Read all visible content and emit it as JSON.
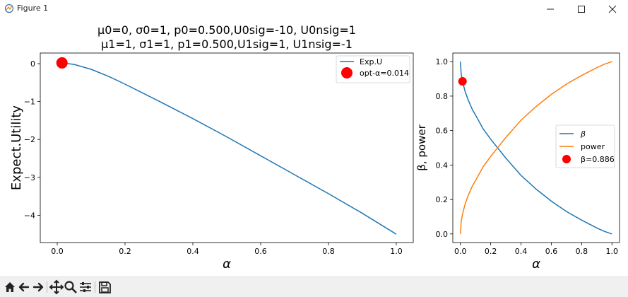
{
  "window": {
    "title": "Figure 1"
  },
  "toolbar": {
    "buttons": [
      "home-icon",
      "back-icon",
      "forward-icon",
      "pan-icon",
      "zoom-icon",
      "configure-icon",
      "save-icon"
    ]
  },
  "figure": {
    "title_line1": "μ0=0, σ0=1, p0=0.500,U0sig=-10, U0nsig=1",
    "title_line2": "μ1=1, σ1=1, p1=0.500,U1sig=1, U1nsig=-1"
  },
  "chart_data": [
    {
      "type": "line",
      "xlabel": "α",
      "ylabel": "Expect.Utility",
      "xlim": [
        -0.05,
        1.05
      ],
      "ylim": [
        -4.72,
        0.28
      ],
      "xticks": [
        "0.0",
        "0.2",
        "0.4",
        "0.6",
        "0.8",
        "1.0"
      ],
      "yticks": [
        "0",
        "−1",
        "−2",
        "−3",
        "−4"
      ],
      "series": [
        {
          "name": "Exp.U",
          "color": "#1f77b4",
          "x": [
            0.0,
            0.014,
            0.05,
            0.1,
            0.15,
            0.2,
            0.3,
            0.4,
            0.5,
            0.6,
            0.7,
            0.8,
            0.9,
            1.0
          ],
          "y": [
            0.0,
            0.02,
            -0.02,
            -0.15,
            -0.33,
            -0.54,
            -0.99,
            -1.45,
            -1.93,
            -2.43,
            -2.93,
            -3.43,
            -3.95,
            -4.5
          ]
        }
      ],
      "marker": {
        "name": "opt-α=0.014",
        "x": 0.014,
        "y": 0.02,
        "color": "#ff0000"
      },
      "legend": "top-right",
      "grid": false
    },
    {
      "type": "line",
      "xlabel": "α",
      "ylabel": "β, power",
      "xlim": [
        -0.05,
        1.05
      ],
      "ylim": [
        -0.05,
        1.05
      ],
      "xticks": [
        "0.0",
        "0.2",
        "0.4",
        "0.6",
        "0.8",
        "1.0"
      ],
      "yticks": [
        "0.0",
        "0.2",
        "0.4",
        "0.6",
        "0.8",
        "1.0"
      ],
      "series": [
        {
          "name": "β",
          "color": "#1f77b4",
          "x": [
            0.0,
            0.005,
            0.014,
            0.03,
            0.05,
            0.08,
            0.1,
            0.15,
            0.2,
            0.3,
            0.4,
            0.5,
            0.6,
            0.7,
            0.8,
            0.9,
            0.95,
            1.0
          ],
          "y": [
            1.0,
            0.93,
            0.886,
            0.83,
            0.78,
            0.72,
            0.69,
            0.61,
            0.55,
            0.44,
            0.34,
            0.26,
            0.19,
            0.13,
            0.08,
            0.035,
            0.015,
            0.0
          ]
        },
        {
          "name": "power",
          "color": "#ff7f0e",
          "x": [
            0.0,
            0.005,
            0.014,
            0.03,
            0.05,
            0.08,
            0.1,
            0.15,
            0.2,
            0.3,
            0.4,
            0.5,
            0.6,
            0.7,
            0.8,
            0.9,
            0.95,
            1.0
          ],
          "y": [
            0.0,
            0.07,
            0.114,
            0.17,
            0.22,
            0.28,
            0.31,
            0.39,
            0.45,
            0.56,
            0.66,
            0.74,
            0.81,
            0.87,
            0.92,
            0.965,
            0.985,
            1.0
          ]
        }
      ],
      "marker": {
        "name": "β=0.886",
        "x": 0.014,
        "y": 0.886,
        "color": "#ff0000"
      },
      "legend": "center-right",
      "grid": false
    }
  ]
}
